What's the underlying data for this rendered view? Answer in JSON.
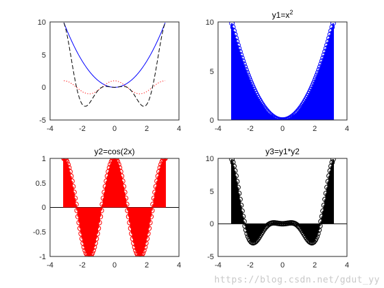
{
  "watermark": "https://blog.csdn.net/gdut_yy",
  "chart_data": [
    {
      "type": "line",
      "title": "",
      "xlim": [
        -4,
        4
      ],
      "ylim": [
        -5,
        10
      ],
      "xticks": [
        "-4",
        "-2",
        "0",
        "2",
        "4"
      ],
      "yticks": [
        "-5",
        "0",
        "5",
        "10"
      ],
      "series": [
        {
          "expr": "x^2",
          "color": "#0000ff",
          "style": "solid"
        },
        {
          "expr": "cos(2x)",
          "color": "#ff0000",
          "style": "dotted"
        },
        {
          "expr": "x^2*cos(2x)",
          "color": "#000000",
          "style": "dashed"
        }
      ],
      "x_domain": [
        -3.14159,
        3.14159
      ]
    },
    {
      "type": "stem",
      "title_base": "y1=x",
      "title_sup": "2",
      "xlim": [
        -4,
        4
      ],
      "ylim": [
        0,
        10
      ],
      "xticks": [
        "-4",
        "-2",
        "0",
        "2",
        "4"
      ],
      "yticks": [
        "0",
        "5",
        "10"
      ],
      "expr": "x^2",
      "color": "#0000ff",
      "x_domain": [
        -3.14159,
        3.14159
      ]
    },
    {
      "type": "stem",
      "title": "y2=cos(2x)",
      "xlim": [
        -4,
        4
      ],
      "ylim": [
        -1,
        1
      ],
      "xticks": [
        "-4",
        "-2",
        "0",
        "2",
        "4"
      ],
      "yticks": [
        "-1",
        "-0.5",
        "0",
        "0.5",
        "1"
      ],
      "expr": "cos(2x)",
      "color": "#ff0000",
      "x_domain": [
        -3.14159,
        3.14159
      ]
    },
    {
      "type": "stem",
      "title": "y3=y1*y2",
      "xlim": [
        -4,
        4
      ],
      "ylim": [
        -5,
        10
      ],
      "xticks": [
        "-4",
        "-2",
        "0",
        "2",
        "4"
      ],
      "yticks": [
        "-5",
        "0",
        "5",
        "10"
      ],
      "expr": "x^2*cos(2x)",
      "color": "#000000",
      "x_domain": [
        -3.14159,
        3.14159
      ]
    }
  ]
}
